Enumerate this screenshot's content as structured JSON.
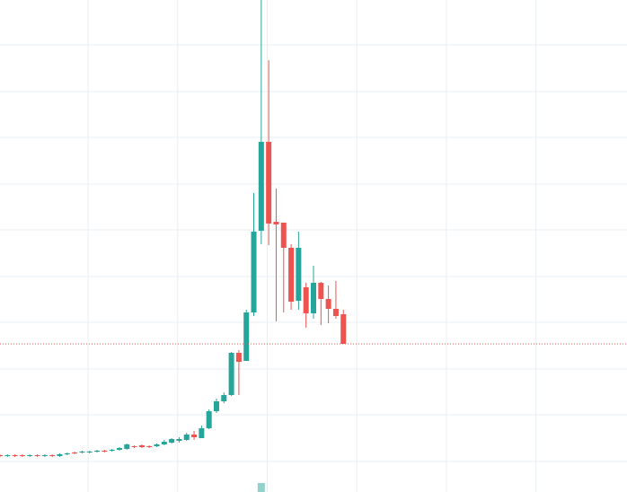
{
  "chart_data": {
    "type": "candlestick",
    "up_color": "#26a69a",
    "down_color": "#ef5350",
    "grid": true,
    "xlim": [
      0,
      84
    ],
    "ylim": [
      0,
      548
    ],
    "xticks": [
      11.8,
      23.8,
      35.8,
      47.8,
      59.8,
      71.8
    ],
    "yticks": [
      34,
      86,
      137,
      189,
      240,
      292,
      343,
      395,
      446,
      498
    ],
    "open": [
      41,
      40,
      41,
      41,
      40,
      41,
      40,
      41,
      40,
      42,
      44,
      44,
      44,
      45,
      46,
      46,
      47,
      48,
      51,
      52,
      51,
      51,
      53,
      55,
      57,
      58,
      64,
      60,
      71,
      90,
      101,
      108,
      155,
      146,
      200,
      291,
      390,
      301,
      300,
      272,
      213,
      228,
      199,
      233,
      215,
      204,
      198
    ],
    "high": [
      42,
      42,
      42,
      42,
      42,
      42,
      42,
      42,
      43,
      44,
      45,
      46,
      46,
      47,
      47,
      48,
      50,
      54,
      52,
      53,
      52,
      54,
      58,
      60,
      61,
      66,
      68,
      74,
      92,
      104,
      111,
      156,
      158,
      203,
      333,
      548,
      481,
      338,
      300,
      276,
      290,
      233,
      252,
      234,
      230,
      235,
      203
    ],
    "low": [
      39,
      39,
      39,
      39,
      39,
      39,
      39,
      39,
      39,
      41,
      42,
      43,
      43,
      44,
      44,
      45,
      46,
      47,
      49,
      49,
      49,
      50,
      52,
      54,
      55,
      57,
      58,
      60,
      70,
      88,
      99,
      107,
      108,
      146,
      196,
      276,
      275,
      190,
      200,
      203,
      203,
      183,
      193,
      186,
      188,
      193,
      165
    ],
    "close": [
      40,
      41,
      40,
      40,
      41,
      40,
      41,
      40,
      42,
      43,
      43,
      45,
      45,
      46,
      45,
      47,
      49,
      53,
      50,
      50,
      50,
      53,
      56,
      59,
      59,
      64,
      61,
      71,
      90,
      101,
      108,
      155,
      145,
      200,
      290,
      390,
      299,
      298,
      272,
      212,
      272,
      199,
      233,
      215,
      204,
      196,
      165
    ],
    "volume": [
      null,
      null,
      null,
      null,
      null,
      null,
      null,
      null,
      null,
      null,
      null,
      null,
      null,
      null,
      null,
      null,
      null,
      null,
      null,
      null,
      null,
      null,
      null,
      null,
      null,
      null,
      null,
      null,
      null,
      null,
      null,
      null,
      null,
      null,
      null,
      10,
      null,
      null,
      null,
      null,
      null,
      null,
      null,
      null,
      null,
      null,
      null
    ]
  }
}
